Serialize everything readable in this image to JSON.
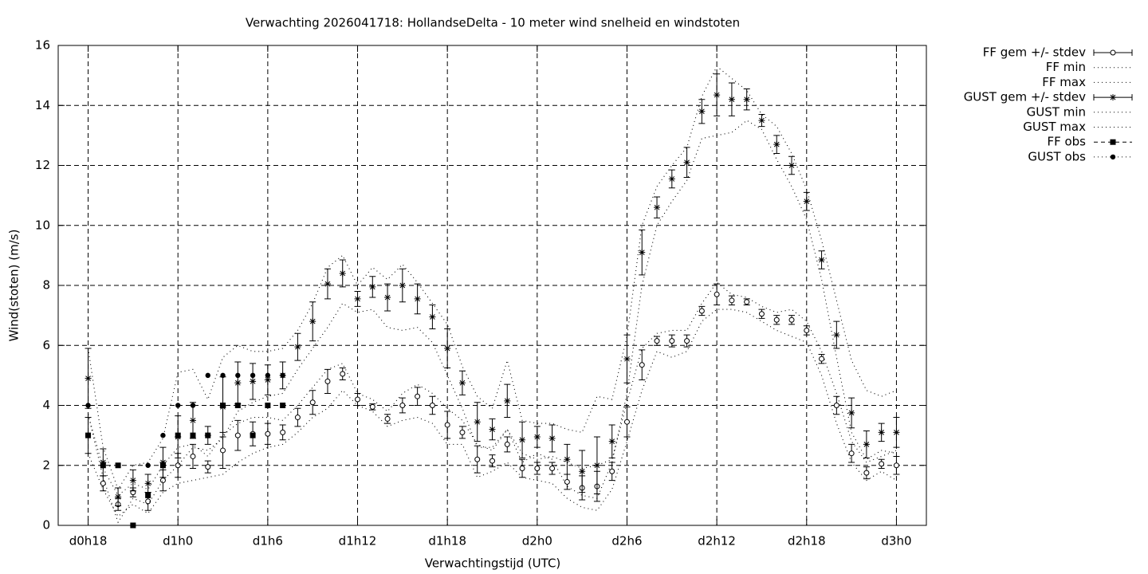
{
  "chart_data": {
    "type": "errorbar",
    "title": "Verwachting 2026041718: HollandseDelta - 10 meter wind snelheid en windstoten",
    "xlabel": "Verwachtingstijd (UTC)",
    "ylabel": "Wind(stoten) (m/s)",
    "xlim": [
      16,
      74
    ],
    "ylim": [
      0,
      16
    ],
    "xticks": [
      {
        "value": 18,
        "label": "d0h18"
      },
      {
        "value": 24,
        "label": "d1h0"
      },
      {
        "value": 30,
        "label": "d1h6"
      },
      {
        "value": 36,
        "label": "d1h12"
      },
      {
        "value": 42,
        "label": "d1h18"
      },
      {
        "value": 48,
        "label": "d2h0"
      },
      {
        "value": 54,
        "label": "d2h6"
      },
      {
        "value": 60,
        "label": "d2h12"
      },
      {
        "value": 66,
        "label": "d2h18"
      },
      {
        "value": 72,
        "label": "d3h0"
      }
    ],
    "yticks": [
      0,
      2,
      4,
      6,
      8,
      10,
      12,
      14,
      16
    ],
    "grid": true,
    "legend": "outside right",
    "color": "#000000",
    "x": [
      18,
      19,
      20,
      21,
      22,
      23,
      24,
      25,
      26,
      27,
      28,
      29,
      30,
      31,
      32,
      33,
      34,
      35,
      36,
      37,
      38,
      39,
      40,
      41,
      42,
      43,
      44,
      45,
      46,
      47,
      48,
      49,
      50,
      51,
      52,
      53,
      54,
      55,
      56,
      57,
      58,
      59,
      60,
      61,
      62,
      63,
      64,
      65,
      66,
      67,
      68,
      69,
      70,
      71,
      72
    ],
    "series": [
      {
        "name": "FF gem +/- stdev",
        "line": "errorbar",
        "marker": "circle",
        "values": [
          3.0,
          1.4,
          0.7,
          1.1,
          0.8,
          1.5,
          2.0,
          2.3,
          1.95,
          2.5,
          3.0,
          3.05,
          3.05,
          3.1,
          3.6,
          4.1,
          4.8,
          5.05,
          4.2,
          3.95,
          3.55,
          4.0,
          4.3,
          4.0,
          3.35,
          3.1,
          2.2,
          2.15,
          2.7,
          1.9,
          1.9,
          1.9,
          1.45,
          1.25,
          1.3,
          1.8,
          3.45,
          5.35,
          6.15,
          6.15,
          6.15,
          7.15,
          7.7,
          7.5,
          7.45,
          7.05,
          6.85,
          6.85,
          6.5,
          5.55,
          4.0,
          2.4,
          1.75,
          2.05,
          2.0
        ],
        "errors": [
          0.6,
          0.25,
          0.2,
          0.15,
          0.3,
          0.35,
          0.4,
          0.4,
          0.2,
          0.6,
          0.5,
          0.4,
          0.35,
          0.25,
          0.3,
          0.4,
          0.4,
          0.2,
          0.2,
          0.1,
          0.15,
          0.25,
          0.3,
          0.3,
          0.45,
          0.2,
          0.45,
          0.2,
          0.25,
          0.3,
          0.2,
          0.2,
          0.25,
          0.4,
          0.5,
          0.3,
          0.5,
          0.5,
          0.15,
          0.2,
          0.2,
          0.15,
          0.35,
          0.15,
          0.1,
          0.15,
          0.15,
          0.15,
          0.15,
          0.15,
          0.3,
          0.3,
          0.2,
          0.15,
          0.3
        ]
      },
      {
        "name": "FF min",
        "line": "dotted",
        "marker": "none",
        "values": [
          2.4,
          1.2,
          0.3,
          0.7,
          0.4,
          1.1,
          1.4,
          1.5,
          1.6,
          1.7,
          2.1,
          2.4,
          2.6,
          2.7,
          3.1,
          3.6,
          3.9,
          4.5,
          4.0,
          3.8,
          3.3,
          3.5,
          3.6,
          3.4,
          2.7,
          2.7,
          1.6,
          1.8,
          2.1,
          1.6,
          1.5,
          1.4,
          0.9,
          0.6,
          0.5,
          1.2,
          2.8,
          4.5,
          5.8,
          5.6,
          5.8,
          6.8,
          7.2,
          7.2,
          7.1,
          6.8,
          6.5,
          6.3,
          6.1,
          5.0,
          3.4,
          2.1,
          1.5,
          1.8,
          1.5
        ]
      },
      {
        "name": "FF max",
        "line": "dotted",
        "marker": "none",
        "values": [
          3.7,
          1.9,
          1.0,
          1.4,
          1.2,
          2.0,
          2.6,
          2.7,
          2.3,
          3.0,
          3.4,
          3.6,
          3.6,
          3.5,
          4.0,
          4.6,
          5.2,
          5.4,
          4.4,
          4.2,
          3.8,
          4.4,
          4.7,
          4.4,
          3.9,
          3.5,
          2.7,
          2.5,
          3.2,
          2.4,
          2.2,
          2.3,
          2.1,
          1.9,
          2.0,
          2.2,
          4.1,
          5.9,
          6.4,
          6.5,
          6.5,
          7.4,
          8.1,
          7.7,
          7.6,
          7.3,
          7.1,
          7.2,
          6.8,
          5.8,
          4.4,
          2.8,
          2.1,
          2.3,
          2.5
        ]
      },
      {
        "name": "GUST gem +/- stdev",
        "line": "errorbar",
        "marker": "star",
        "values": [
          4.9,
          2.1,
          0.95,
          1.5,
          1.4,
          2.1,
          2.95,
          3.5,
          3.0,
          3.95,
          4.75,
          4.8,
          4.85,
          5.0,
          5.95,
          6.8,
          8.05,
          8.4,
          7.55,
          7.95,
          7.6,
          8.0,
          7.55,
          6.95,
          5.9,
          4.75,
          3.45,
          3.2,
          4.15,
          2.85,
          2.95,
          2.9,
          2.2,
          1.8,
          2.0,
          2.8,
          5.55,
          9.1,
          10.6,
          11.55,
          12.1,
          13.8,
          14.35,
          14.2,
          14.2,
          13.5,
          12.7,
          12.0,
          10.8,
          8.85,
          6.35,
          3.75,
          2.7,
          3.1,
          3.1
        ],
        "errors": [
          1.0,
          0.45,
          0.3,
          0.35,
          0.3,
          0.5,
          0.7,
          0.6,
          0.3,
          1.0,
          0.7,
          0.6,
          0.5,
          0.45,
          0.45,
          0.65,
          0.5,
          0.45,
          0.25,
          0.35,
          0.45,
          0.55,
          0.5,
          0.4,
          0.65,
          0.4,
          0.65,
          0.35,
          0.55,
          0.6,
          0.35,
          0.45,
          0.5,
          0.7,
          0.95,
          0.55,
          0.8,
          0.75,
          0.35,
          0.3,
          0.5,
          0.4,
          0.7,
          0.55,
          0.35,
          0.2,
          0.3,
          0.3,
          0.3,
          0.3,
          0.45,
          0.5,
          0.45,
          0.3,
          0.5
        ]
      },
      {
        "name": "GUST min",
        "line": "dotted",
        "marker": "none",
        "values": [
          3.7,
          1.6,
          0.1,
          0.9,
          0.7,
          1.5,
          2.0,
          2.6,
          2.5,
          2.9,
          3.8,
          4.1,
          4.3,
          4.4,
          5.2,
          5.9,
          6.6,
          7.4,
          7.1,
          7.2,
          6.6,
          6.5,
          6.6,
          6.1,
          5.0,
          3.9,
          2.6,
          2.6,
          3.2,
          2.1,
          2.4,
          2.2,
          1.3,
          1.0,
          0.9,
          2.1,
          4.4,
          8.0,
          10.0,
          10.8,
          11.5,
          12.9,
          13.0,
          13.1,
          13.5,
          13.2,
          12.2,
          11.3,
          10.2,
          8.2,
          5.6,
          3.1,
          2.2,
          2.5,
          2.4
        ]
      },
      {
        "name": "GUST max",
        "line": "dotted",
        "marker": "none",
        "values": [
          5.9,
          2.6,
          1.2,
          2.0,
          2.1,
          2.9,
          5.1,
          5.2,
          4.2,
          5.6,
          6.0,
          5.8,
          5.8,
          5.9,
          6.5,
          7.4,
          8.6,
          9.0,
          8.0,
          8.6,
          8.2,
          8.7,
          8.1,
          7.4,
          6.7,
          5.3,
          4.3,
          3.9,
          5.5,
          3.5,
          3.4,
          3.4,
          3.2,
          3.1,
          4.3,
          4.2,
          6.3,
          10.0,
          11.3,
          12.0,
          12.6,
          14.3,
          15.3,
          14.9,
          14.5,
          13.7,
          13.3,
          12.4,
          11.2,
          9.5,
          7.5,
          5.5,
          4.5,
          4.3,
          4.5
        ]
      },
      {
        "name": "FF obs",
        "line": "dashed",
        "marker": "square",
        "x": [
          18,
          19,
          20,
          21,
          22,
          23,
          24,
          25,
          26,
          27,
          28,
          29,
          30,
          31
        ],
        "values": [
          3,
          2,
          2,
          0,
          1,
          2,
          3,
          3,
          3,
          4,
          4,
          3,
          4,
          4
        ]
      },
      {
        "name": "GUST obs",
        "line": "dotted",
        "marker": "dot",
        "x": [
          18,
          19,
          22,
          23,
          24,
          25,
          26,
          27,
          28,
          29,
          30,
          31
        ],
        "values": [
          4,
          2,
          2,
          3,
          4,
          4,
          5,
          5,
          5,
          5,
          5,
          5
        ]
      }
    ]
  }
}
